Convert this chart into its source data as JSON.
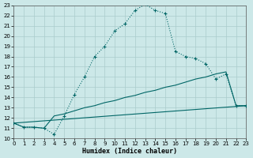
{
  "xlabel": "Humidex (Indice chaleur)",
  "bg_color": "#cce8e8",
  "grid_color": "#aacccc",
  "line_color": "#006666",
  "xlim": [
    0,
    23
  ],
  "ylim": [
    10,
    23
  ],
  "xticks": [
    0,
    1,
    2,
    3,
    4,
    5,
    6,
    7,
    8,
    9,
    10,
    11,
    12,
    13,
    14,
    15,
    16,
    17,
    18,
    19,
    20,
    21,
    22,
    23
  ],
  "yticks": [
    10,
    11,
    12,
    13,
    14,
    15,
    16,
    17,
    18,
    19,
    20,
    21,
    22,
    23
  ],
  "line1_x": [
    0,
    1,
    2,
    3,
    4,
    5,
    6,
    7,
    8,
    9,
    10,
    11,
    12,
    13,
    14,
    15,
    16,
    17,
    18,
    19,
    20,
    21,
    22,
    23
  ],
  "line1_y": [
    11.5,
    11.1,
    11.1,
    11.0,
    10.4,
    12.2,
    14.3,
    16.0,
    18.0,
    19.0,
    20.5,
    21.2,
    22.5,
    23.1,
    22.5,
    22.2,
    18.5,
    18.0,
    17.8,
    17.3,
    15.8,
    16.3,
    13.2,
    13.2
  ],
  "line2_x": [
    0,
    1,
    2,
    3,
    4,
    5,
    6,
    7,
    8,
    9,
    10,
    11,
    12,
    13,
    14,
    15,
    16,
    17,
    18,
    19,
    20,
    21,
    22,
    23
  ],
  "line2_y": [
    11.5,
    11.1,
    11.1,
    11.0,
    12.2,
    12.4,
    12.7,
    13.0,
    13.2,
    13.5,
    13.7,
    14.0,
    14.2,
    14.5,
    14.7,
    15.0,
    15.2,
    15.5,
    15.8,
    16.0,
    16.3,
    16.5,
    13.2,
    13.2
  ],
  "line3_x": [
    0,
    23
  ],
  "line3_y": [
    11.5,
    13.2
  ]
}
